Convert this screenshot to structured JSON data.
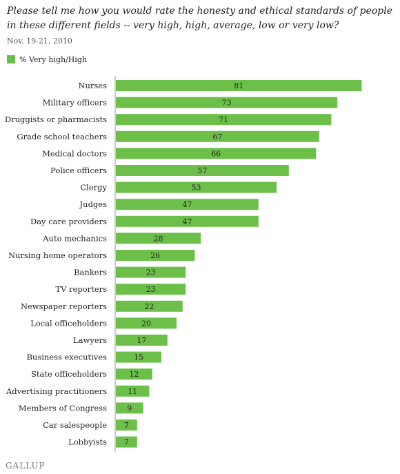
{
  "title": "Please tell me how you would rate the honesty and ethical standards of people in these different fields -- very high, high, average, low or very low?",
  "subtitle": "Nov. 19-21, 2010",
  "logo": "GALLUP",
  "colors": {
    "bar": "#6cc04a",
    "axis": "#999999",
    "label": "#222222"
  },
  "chart_data": {
    "type": "bar",
    "orientation": "horizontal",
    "categories": [
      "Nurses",
      "Military officers",
      "Druggists or pharmacists",
      "Grade school teachers",
      "Medical doctors",
      "Police officers",
      "Clergy",
      "Judges",
      "Day care providers",
      "Auto mechanics",
      "Nursing home operators",
      "Bankers",
      "TV reporters",
      "Newspaper reporters",
      "Local officeholders",
      "Lawyers",
      "Business executives",
      "State officeholders",
      "Advertising practitioners",
      "Members of Congress",
      "Car salespeople",
      "Lobbyists"
    ],
    "series": [
      {
        "name": "% Very high/High",
        "values": [
          81,
          73,
          71,
          67,
          66,
          57,
          53,
          47,
          47,
          28,
          26,
          23,
          23,
          22,
          20,
          17,
          15,
          12,
          11,
          9,
          7,
          7
        ]
      }
    ],
    "legend": "top-left",
    "grid": false,
    "xlim": [
      0,
      100
    ],
    "data_labels": true
  }
}
